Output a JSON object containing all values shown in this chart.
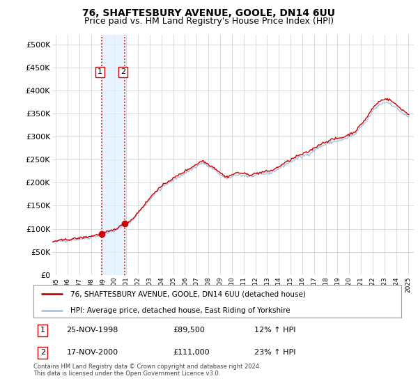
{
  "title": "76, SHAFTESBURY AVENUE, GOOLE, DN14 6UU",
  "subtitle": "Price paid vs. HM Land Registry's House Price Index (HPI)",
  "ylabel_ticks": [
    "£0",
    "£50K",
    "£100K",
    "£150K",
    "£200K",
    "£250K",
    "£300K",
    "£350K",
    "£400K",
    "£450K",
    "£500K"
  ],
  "ytick_values": [
    0,
    50000,
    100000,
    150000,
    200000,
    250000,
    300000,
    350000,
    400000,
    450000,
    500000
  ],
  "ylim": [
    0,
    520000
  ],
  "xlim_start": 1994.7,
  "xlim_end": 2025.5,
  "sale1_date": 1998.9,
  "sale1_price": 89500,
  "sale1_label": "1",
  "sale2_date": 2000.88,
  "sale2_price": 111000,
  "sale2_label": "2",
  "hpi_color": "#a8c4e0",
  "price_color": "#cc0000",
  "sale_marker_color": "#cc0000",
  "vline_color": "#cc0000",
  "vline_style": ":",
  "shade_color": "#ddeeff",
  "legend_line1": "76, SHAFTESBURY AVENUE, GOOLE, DN14 6UU (detached house)",
  "legend_line2": "HPI: Average price, detached house, East Riding of Yorkshire",
  "table_row1_num": "1",
  "table_row1_date": "25-NOV-1998",
  "table_row1_price": "£89,500",
  "table_row1_hpi": "12% ↑ HPI",
  "table_row2_num": "2",
  "table_row2_date": "17-NOV-2000",
  "table_row2_price": "£111,000",
  "table_row2_hpi": "23% ↑ HPI",
  "footnote": "Contains HM Land Registry data © Crown copyright and database right 2024.\nThis data is licensed under the Open Government Licence v3.0.",
  "bg_color": "#ffffff",
  "grid_color": "#cccccc",
  "title_fontsize": 10,
  "subtitle_fontsize": 9,
  "hpi_key_points_t": [
    1994.7,
    1995.0,
    1997.0,
    1998.0,
    1999.0,
    2000.0,
    2001.5,
    2002.5,
    2003.5,
    2004.5,
    2005.5,
    2006.5,
    2007.5,
    2008.5,
    2009.5,
    2010.5,
    2011.5,
    2012.5,
    2013.5,
    2014.5,
    2015.5,
    2016.5,
    2017.5,
    2018.5,
    2019.5,
    2020.5,
    2021.5,
    2022.0,
    2022.5,
    2023.0,
    2023.5,
    2024.0,
    2024.5,
    2025.0
  ],
  "hpi_key_points_v": [
    70000,
    72000,
    78000,
    82000,
    88000,
    96000,
    118000,
    148000,
    178000,
    198000,
    213000,
    228000,
    243000,
    228000,
    208000,
    218000,
    213000,
    218000,
    223000,
    238000,
    252000,
    262000,
    278000,
    288000,
    293000,
    305000,
    335000,
    355000,
    368000,
    375000,
    372000,
    362000,
    352000,
    342000
  ]
}
